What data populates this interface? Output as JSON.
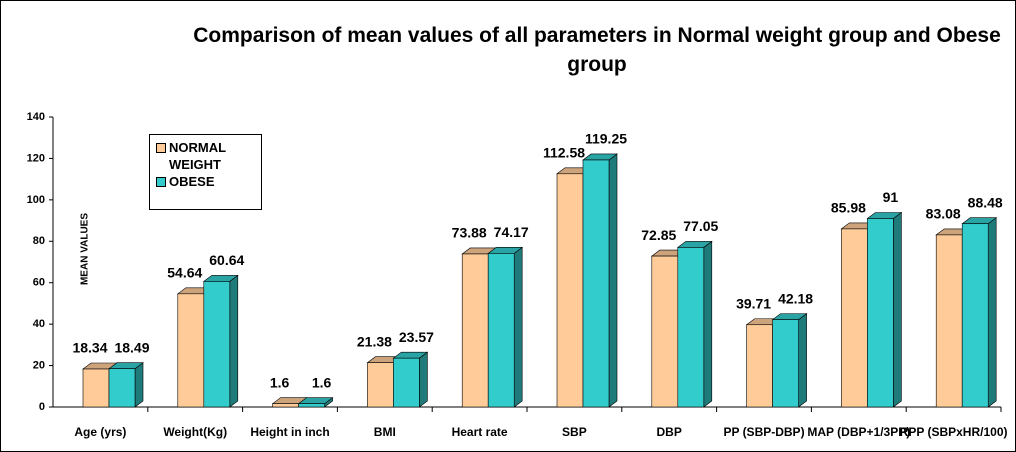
{
  "chart_data": {
    "type": "bar3d",
    "title": "Comparison of mean values of all parameters in Normal weight group and Obese group",
    "ylabel": "MEAN VALUES",
    "categories": [
      "Age (yrs)",
      "Weight(Kg)",
      "Height in inch",
      "BMI",
      "Heart rate",
      "SBP",
      "DBP",
      "PP (SBP-DBP)",
      "MAP (DBP+1/3PP)",
      "RPP (SBPxHR/100)"
    ],
    "series": [
      {
        "name": "NORMAL WEIGHT",
        "color": "#ffcc99",
        "values": [
          18.34,
          54.64,
          1.6,
          21.38,
          73.88,
          112.58,
          72.85,
          39.71,
          85.98,
          83.08
        ]
      },
      {
        "name": "OBESE",
        "color": "#33cccc",
        "values": [
          18.49,
          60.64,
          1.6,
          23.57,
          74.17,
          119.25,
          77.05,
          42.18,
          91,
          88.48
        ]
      }
    ],
    "ylim": [
      0,
      140
    ],
    "yticks": [
      0,
      20,
      40,
      60,
      80,
      100,
      120,
      140
    ]
  }
}
